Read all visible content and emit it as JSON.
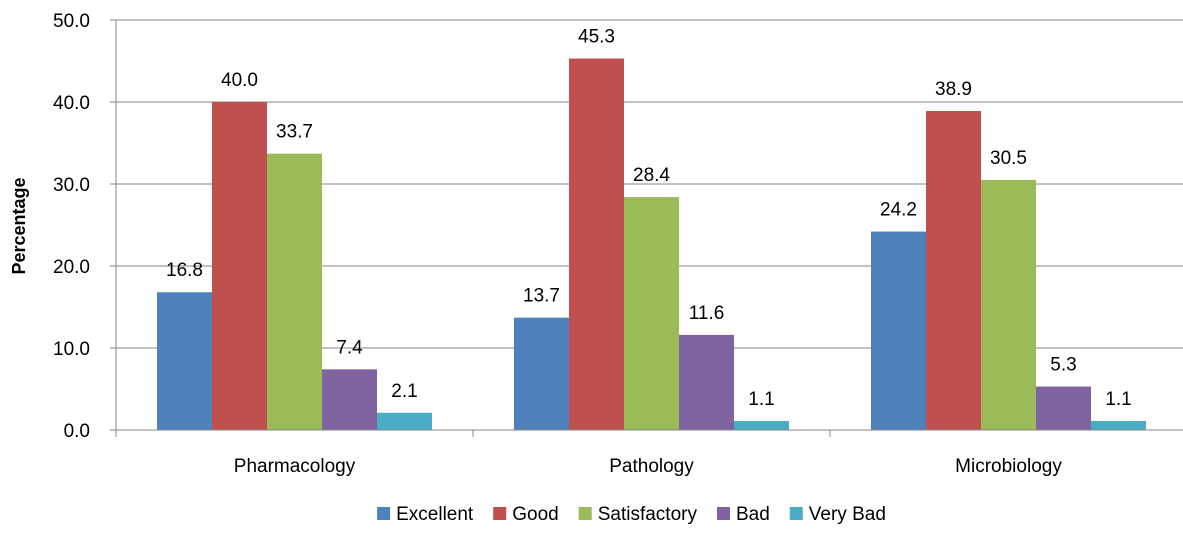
{
  "chart_data": {
    "type": "bar",
    "title": "",
    "xlabel": "",
    "ylabel": "Percentage",
    "ylim": [
      0,
      50
    ],
    "yticks": [
      "0.0",
      "10.0",
      "20.0",
      "30.0",
      "40.0",
      "50.0"
    ],
    "grid": true,
    "legend_position": "bottom",
    "categories": [
      "Pharmacology",
      "Pathology",
      "Microbiology"
    ],
    "series": [
      {
        "name": "Excellent",
        "color": "#4F81BD",
        "values": [
          16.8,
          13.7,
          24.2
        ],
        "labels": [
          "16.8",
          "13.7",
          "24.2"
        ]
      },
      {
        "name": "Good",
        "color": "#C0504D",
        "values": [
          40.0,
          45.3,
          38.9
        ],
        "labels": [
          "40.0",
          "45.3",
          "38.9"
        ]
      },
      {
        "name": "Satisfactory",
        "color": "#9BBB59",
        "values": [
          33.7,
          28.4,
          30.5
        ],
        "labels": [
          "33.7",
          "28.4",
          "30.5"
        ]
      },
      {
        "name": "Bad",
        "color": "#8064A2",
        "values": [
          7.4,
          11.6,
          5.3
        ],
        "labels": [
          "7.4",
          "11.6",
          "5.3"
        ]
      },
      {
        "name": "Very Bad",
        "color": "#4BACC6",
        "values": [
          2.1,
          1.1,
          1.1
        ],
        "labels": [
          "2.1",
          "1.1",
          "1.1"
        ]
      }
    ]
  }
}
